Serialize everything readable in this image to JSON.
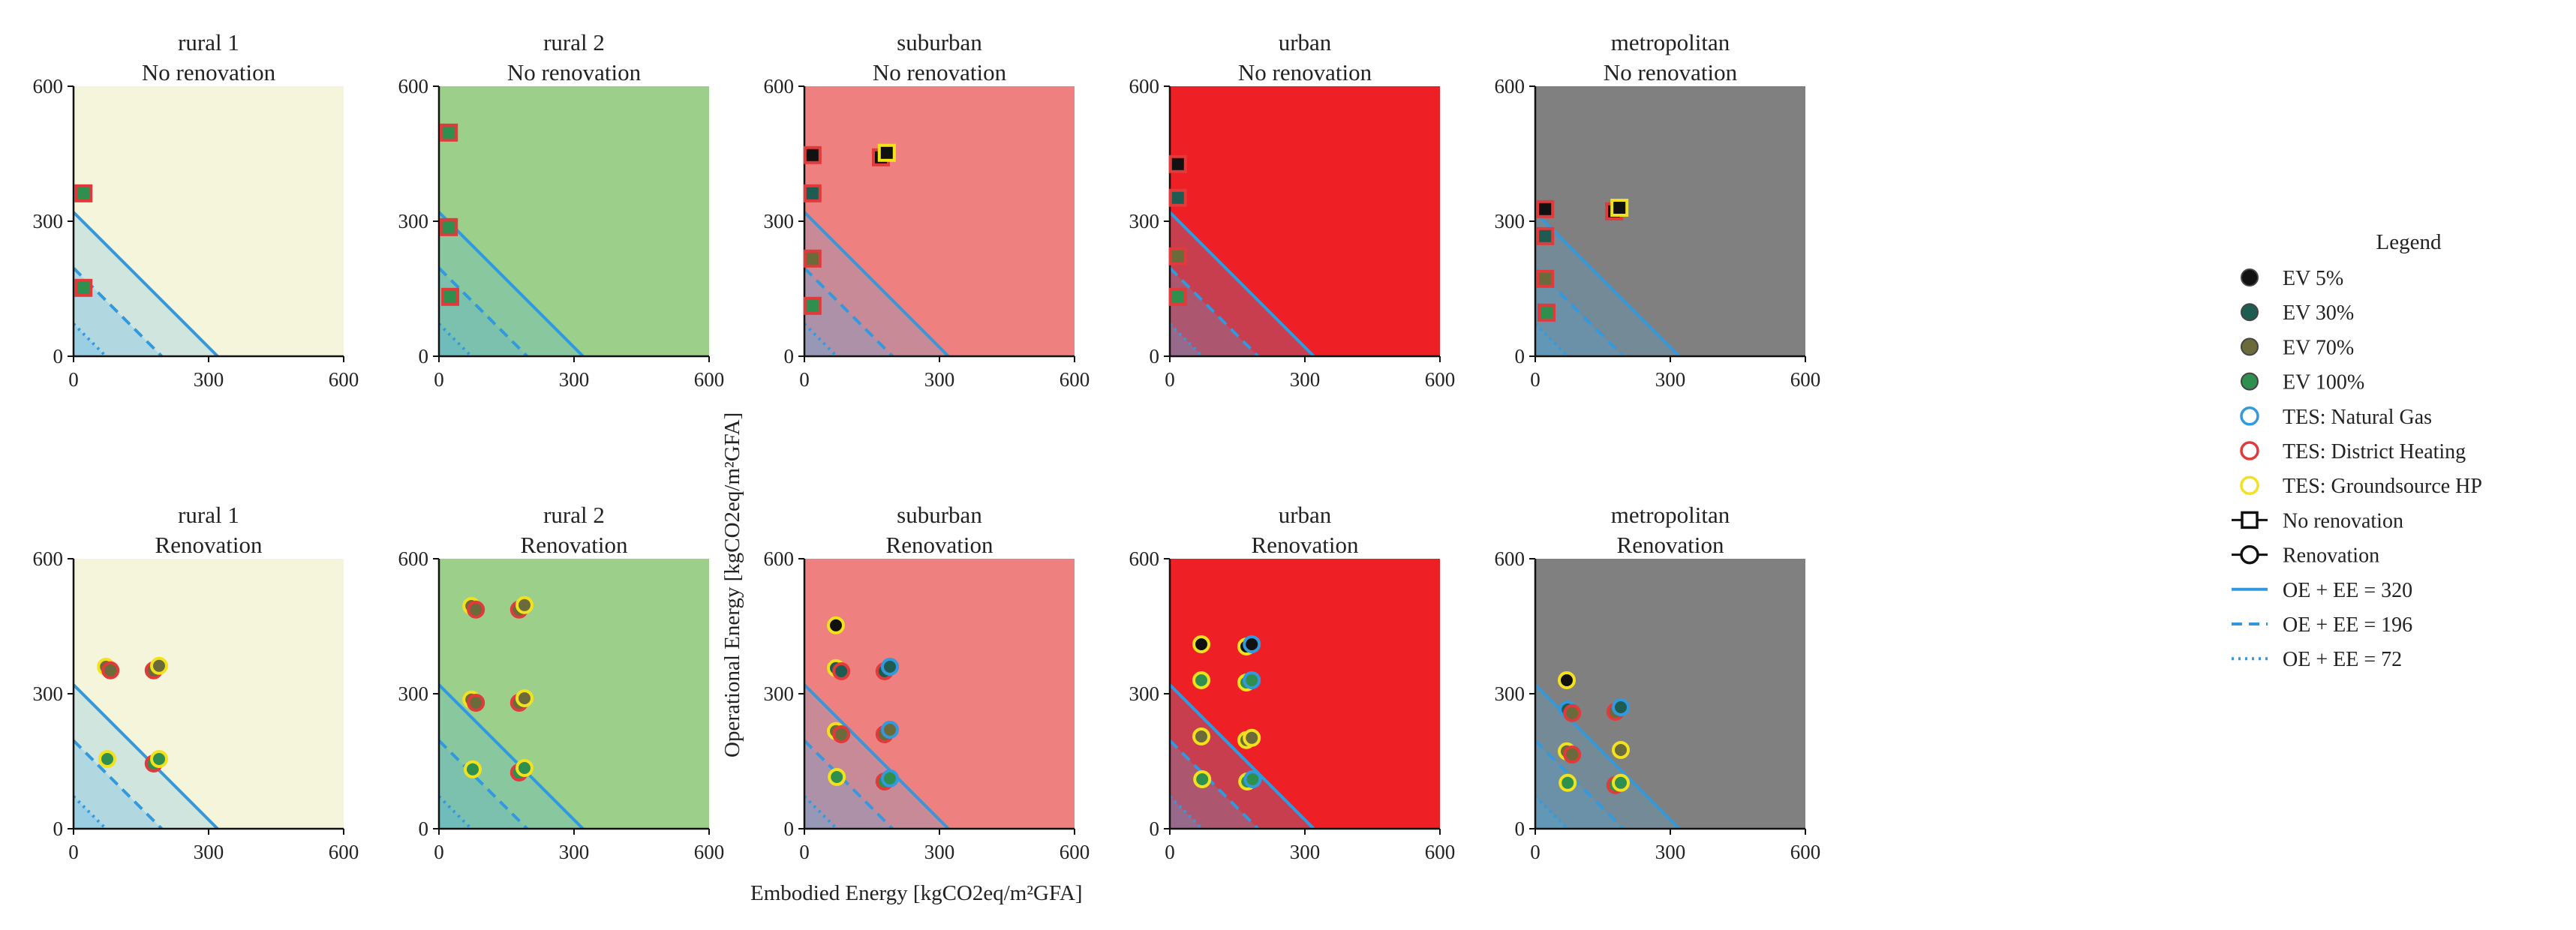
{
  "chart_data": {
    "type": "scatter",
    "axes": {
      "xlim": [
        0,
        600
      ],
      "ylim": [
        0,
        600
      ],
      "ticks": [
        0,
        300,
        600
      ]
    },
    "xlabel": "Embodied Energy  [kgCO2eq/m²GFA]",
    "ylabel": "Operational Energy  [kgCO2eq/m²GFA]",
    "budget_lines": [
      {
        "label": "OE + EE = 320",
        "value": 320,
        "style": "solid"
      },
      {
        "label": "OE + EE = 196",
        "value": 196,
        "style": "dashed"
      },
      {
        "label": "OE + EE = 72",
        "value": 72,
        "style": "dotted"
      }
    ],
    "ev_colors": {
      "5": "#111111",
      "30": "#1e5c52",
      "70": "#6b6a3a",
      "100": "#2f8f4e"
    },
    "tes_colors": {
      "Natural Gas": "#3399dd",
      "District Heating": "#e03a3a",
      "Groundsource HP": "#f2e21e"
    },
    "panels": [
      {
        "id": "rural1-nr",
        "line1": "rural 1",
        "line2": "No renovation",
        "bg": "#f5f5dc",
        "marker": "square",
        "points": [
          {
            "x": 22,
            "y": 362,
            "ev": "100",
            "tes": "District Heating"
          },
          {
            "x": 22,
            "y": 152,
            "ev": "100",
            "tes": "District Heating"
          }
        ]
      },
      {
        "id": "rural2-nr",
        "line1": "rural 2",
        "line2": "No renovation",
        "bg": "#9bcf8a",
        "marker": "square",
        "points": [
          {
            "x": 22,
            "y": 497,
            "ev": "100",
            "tes": "District Heating"
          },
          {
            "x": 22,
            "y": 287,
            "ev": "100",
            "tes": "District Heating"
          },
          {
            "x": 25,
            "y": 132,
            "ev": "100",
            "tes": "District Heating"
          }
        ]
      },
      {
        "id": "suburban-nr",
        "line1": "suburban",
        "line2": "No renovation",
        "bg": "#ee8080",
        "marker": "square",
        "points": [
          {
            "x": 18,
            "y": 447,
            "ev": "5",
            "tes": "District Heating"
          },
          {
            "x": 170,
            "y": 442,
            "ev": "5",
            "tes": "District Heating"
          },
          {
            "x": 183,
            "y": 452,
            "ev": "5",
            "tes": "Groundsource HP"
          },
          {
            "x": 18,
            "y": 362,
            "ev": "30",
            "tes": "District Heating"
          },
          {
            "x": 18,
            "y": 217,
            "ev": "70",
            "tes": "District Heating"
          },
          {
            "x": 18,
            "y": 112,
            "ev": "100",
            "tes": "District Heating"
          }
        ]
      },
      {
        "id": "urban-nr",
        "line1": "urban",
        "line2": "No renovation",
        "bg": "#ee1f25",
        "marker": "square",
        "points": [
          {
            "x": 18,
            "y": 427,
            "ev": "5",
            "tes": "District Heating"
          },
          {
            "x": 18,
            "y": 352,
            "ev": "30",
            "tes": "District Heating"
          },
          {
            "x": 18,
            "y": 222,
            "ev": "70",
            "tes": "District Heating"
          },
          {
            "x": 18,
            "y": 132,
            "ev": "100",
            "tes": "District Heating"
          }
        ]
      },
      {
        "id": "metro-nr",
        "line1": "metropolitan",
        "line2": "No renovation",
        "bg": "#808080",
        "marker": "square",
        "points": [
          {
            "x": 22,
            "y": 327,
            "ev": "5",
            "tes": "District Heating"
          },
          {
            "x": 175,
            "y": 322,
            "ev": "5",
            "tes": "District Heating"
          },
          {
            "x": 187,
            "y": 330,
            "ev": "5",
            "tes": "Groundsource HP"
          },
          {
            "x": 22,
            "y": 267,
            "ev": "30",
            "tes": "District Heating"
          },
          {
            "x": 22,
            "y": 172,
            "ev": "70",
            "tes": "District Heating"
          },
          {
            "x": 25,
            "y": 97,
            "ev": "100",
            "tes": "District Heating"
          }
        ]
      },
      {
        "id": "rural1-r",
        "line1": "rural 1",
        "line2": "Renovation",
        "bg": "#f5f5dc",
        "marker": "circle",
        "points": [
          {
            "x": 72,
            "y": 360,
            "ev": "70",
            "tes": "Groundsource HP"
          },
          {
            "x": 82,
            "y": 352,
            "ev": "70",
            "tes": "District Heating"
          },
          {
            "x": 178,
            "y": 352,
            "ev": "70",
            "tes": "District Heating"
          },
          {
            "x": 190,
            "y": 362,
            "ev": "70",
            "tes": "Groundsource HP"
          },
          {
            "x": 75,
            "y": 155,
            "ev": "100",
            "tes": "Groundsource HP"
          },
          {
            "x": 178,
            "y": 145,
            "ev": "100",
            "tes": "District Heating"
          },
          {
            "x": 190,
            "y": 155,
            "ev": "100",
            "tes": "Groundsource HP"
          }
        ]
      },
      {
        "id": "rural2-r",
        "line1": "rural 2",
        "line2": "Renovation",
        "bg": "#9bcf8a",
        "marker": "circle",
        "points": [
          {
            "x": 72,
            "y": 495,
            "ev": "70",
            "tes": "Groundsource HP"
          },
          {
            "x": 82,
            "y": 487,
            "ev": "70",
            "tes": "District Heating"
          },
          {
            "x": 178,
            "y": 487,
            "ev": "70",
            "tes": "District Heating"
          },
          {
            "x": 190,
            "y": 497,
            "ev": "70",
            "tes": "Groundsource HP"
          },
          {
            "x": 72,
            "y": 287,
            "ev": "70",
            "tes": "Groundsource HP"
          },
          {
            "x": 82,
            "y": 280,
            "ev": "70",
            "tes": "District Heating"
          },
          {
            "x": 178,
            "y": 280,
            "ev": "70",
            "tes": "District Heating"
          },
          {
            "x": 190,
            "y": 290,
            "ev": "70",
            "tes": "Groundsource HP"
          },
          {
            "x": 75,
            "y": 132,
            "ev": "100",
            "tes": "Groundsource HP"
          },
          {
            "x": 178,
            "y": 125,
            "ev": "100",
            "tes": "District Heating"
          },
          {
            "x": 190,
            "y": 135,
            "ev": "100",
            "tes": "Groundsource HP"
          }
        ]
      },
      {
        "id": "suburban-r",
        "line1": "suburban",
        "line2": "Renovation",
        "bg": "#ee8080",
        "marker": "circle",
        "points": [
          {
            "x": 70,
            "y": 452,
            "ev": "5",
            "tes": "Groundsource HP"
          },
          {
            "x": 70,
            "y": 357,
            "ev": "30",
            "tes": "Groundsource HP"
          },
          {
            "x": 82,
            "y": 350,
            "ev": "30",
            "tes": "District Heating"
          },
          {
            "x": 178,
            "y": 350,
            "ev": "30",
            "tes": "District Heating"
          },
          {
            "x": 190,
            "y": 360,
            "ev": "30",
            "tes": "Natural Gas"
          },
          {
            "x": 70,
            "y": 217,
            "ev": "70",
            "tes": "Groundsource HP"
          },
          {
            "x": 82,
            "y": 210,
            "ev": "70",
            "tes": "District Heating"
          },
          {
            "x": 178,
            "y": 210,
            "ev": "70",
            "tes": "District Heating"
          },
          {
            "x": 190,
            "y": 220,
            "ev": "70",
            "tes": "Natural Gas"
          },
          {
            "x": 72,
            "y": 115,
            "ev": "100",
            "tes": "Groundsource HP"
          },
          {
            "x": 178,
            "y": 105,
            "ev": "100",
            "tes": "District Heating"
          },
          {
            "x": 190,
            "y": 112,
            "ev": "100",
            "tes": "Natural Gas"
          }
        ]
      },
      {
        "id": "urban-r",
        "line1": "urban",
        "line2": "Renovation",
        "bg": "#ee1f25",
        "marker": "circle",
        "points": [
          {
            "x": 70,
            "y": 410,
            "ev": "5",
            "tes": "Groundsource HP"
          },
          {
            "x": 170,
            "y": 405,
            "ev": "5",
            "tes": "Groundsource HP"
          },
          {
            "x": 182,
            "y": 410,
            "ev": "5",
            "tes": "Natural Gas"
          },
          {
            "x": 70,
            "y": 330,
            "ev": "100",
            "tes": "Groundsource HP"
          },
          {
            "x": 170,
            "y": 325,
            "ev": "100",
            "tes": "Groundsource HP"
          },
          {
            "x": 182,
            "y": 330,
            "ev": "100",
            "tes": "Natural Gas"
          },
          {
            "x": 70,
            "y": 205,
            "ev": "70",
            "tes": "Groundsource HP"
          },
          {
            "x": 170,
            "y": 197,
            "ev": "70",
            "tes": "Groundsource HP"
          },
          {
            "x": 182,
            "y": 202,
            "ev": "70",
            "tes": "Groundsource HP"
          },
          {
            "x": 72,
            "y": 110,
            "ev": "100",
            "tes": "Groundsource HP"
          },
          {
            "x": 172,
            "y": 105,
            "ev": "100",
            "tes": "Groundsource HP"
          },
          {
            "x": 184,
            "y": 110,
            "ev": "100",
            "tes": "Natural Gas"
          }
        ]
      },
      {
        "id": "metro-r",
        "line1": "metropolitan",
        "line2": "Renovation",
        "bg": "#808080",
        "marker": "circle",
        "points": [
          {
            "x": 70,
            "y": 330,
            "ev": "5",
            "tes": "Groundsource HP"
          },
          {
            "x": 72,
            "y": 265,
            "ev": "30",
            "tes": "Natural Gas"
          },
          {
            "x": 82,
            "y": 257,
            "ev": "70",
            "tes": "District Heating"
          },
          {
            "x": 178,
            "y": 260,
            "ev": "70",
            "tes": "District Heating"
          },
          {
            "x": 190,
            "y": 270,
            "ev": "30",
            "tes": "Natural Gas"
          },
          {
            "x": 70,
            "y": 172,
            "ev": "70",
            "tes": "Groundsource HP"
          },
          {
            "x": 82,
            "y": 165,
            "ev": "70",
            "tes": "District Heating"
          },
          {
            "x": 190,
            "y": 175,
            "ev": "70",
            "tes": "Groundsource HP"
          },
          {
            "x": 72,
            "y": 102,
            "ev": "100",
            "tes": "Groundsource HP"
          },
          {
            "x": 178,
            "y": 97,
            "ev": "100",
            "tes": "District Heating"
          },
          {
            "x": 190,
            "y": 102,
            "ev": "100",
            "tes": "Groundsource HP"
          }
        ]
      }
    ],
    "legend": {
      "title": "Legend",
      "items": [
        {
          "label": "EV 5%",
          "kind": "dot",
          "color": "#111111"
        },
        {
          "label": "EV 30%",
          "kind": "dot",
          "color": "#1e5c52"
        },
        {
          "label": "EV 70%",
          "kind": "dot",
          "color": "#6b6a3a"
        },
        {
          "label": "EV 100%",
          "kind": "dot",
          "color": "#2f8f4e"
        },
        {
          "label": "TES: Natural Gas",
          "kind": "ring",
          "color": "#3399dd"
        },
        {
          "label": "TES: District Heating",
          "kind": "ring",
          "color": "#e03a3a"
        },
        {
          "label": "TES: Groundsource HP",
          "kind": "ring",
          "color": "#f2e21e"
        },
        {
          "label": "No renovation",
          "kind": "square-line",
          "color": "#111111"
        },
        {
          "label": "Renovation",
          "kind": "circle-line",
          "color": "#111111"
        },
        {
          "label": "OE + EE = 320",
          "kind": "line",
          "style": "solid",
          "color": "#3399dd"
        },
        {
          "label": "OE + EE = 196",
          "kind": "line",
          "style": "dashed",
          "color": "#3399dd"
        },
        {
          "label": "OE + EE = 72",
          "kind": "line",
          "style": "dotted",
          "color": "#3399dd"
        }
      ]
    }
  }
}
